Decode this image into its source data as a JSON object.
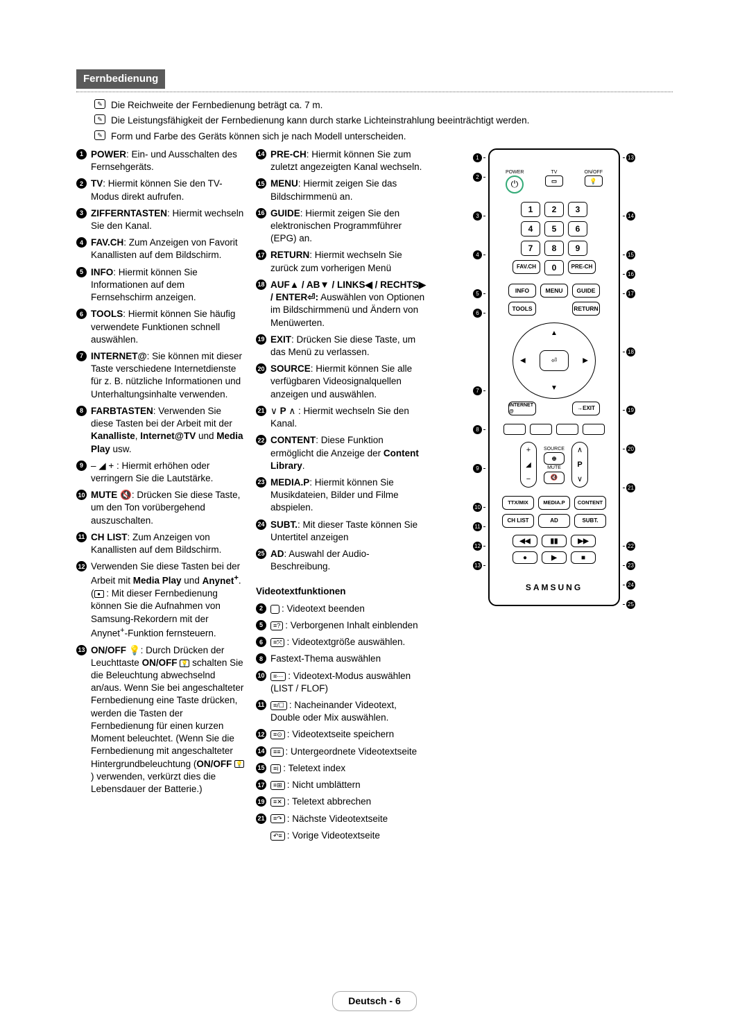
{
  "title": "Fernbedienung",
  "intro": [
    "Die Reichweite der Fernbedienung beträgt ca. 7 m.",
    "Die Leistungsfähigkeit der Fernbedienung kann durch starke Lichteinstrahlung beeinträchtigt werden.",
    "Form und Farbe des Geräts können sich je nach Modell unterscheiden."
  ],
  "left_items": [
    {
      "n": "1",
      "bold": "POWER",
      "text": ": Ein- und Ausschalten des Fernsehgeräts."
    },
    {
      "n": "2",
      "bold": "TV",
      "text": ": Hiermit können Sie den TV-Modus direkt aufrufen."
    },
    {
      "n": "3",
      "bold": "ZIFFERNTASTEN",
      "text": ": Hiermit wechseln Sie den Kanal."
    },
    {
      "n": "4",
      "bold": "FAV.CH",
      "text": ": Zum Anzeigen von Favorit Kanallisten auf dem Bildschirm."
    },
    {
      "n": "5",
      "bold": "INFO",
      "text": ": Hiermit können Sie Informationen auf dem Fernsehschirm anzeigen."
    },
    {
      "n": "6",
      "bold": "TOOLS",
      "text": ": Hiermit können Sie häufig verwendete Funktionen schnell auswählen."
    },
    {
      "n": "7",
      "bold": "INTERNET@",
      "text": ": Sie können mit dieser Taste verschiedene Internetdienste für z. B. nützliche Informationen und Unterhaltungsinhalte verwenden."
    },
    {
      "n": "8",
      "bold": "FARBTASTEN",
      "text_html": ": Verwenden Sie diese Tasten bei der Arbeit mit der <b>Kanalliste</b>, <b>Internet@TV</b> und <b>Media Play</b> usw."
    },
    {
      "n": "9",
      "bold": "",
      "text_html": "– ◢ + : Hiermit erhöhen oder verringern Sie die Lautstärke."
    },
    {
      "n": "10",
      "bold": "MUTE 🔇",
      "text": ": Drücken Sie diese Taste, um den Ton vorübergehend auszuschalten."
    },
    {
      "n": "11",
      "bold": "CH LIST",
      "text": ": Zum Anzeigen von Kanallisten auf dem Bildschirm."
    },
    {
      "n": "12",
      "bold": "",
      "text_html": "Verwenden Sie diese Tasten bei der Arbeit mit <b>Media Play</b> und <b>Anynet<sup>+</sup></b>. (<span class='mid-icon'>●</span> : Mit dieser Fernbedienung können Sie die Aufnahmen von Samsung-Rekordern mit der Anynet<sup>+</sup>-Funktion fernsteuern."
    },
    {
      "n": "13",
      "bold": "ON/OFF 💡",
      "text_html": ": Durch Drücken der Leuchttaste <b>ON/OFF</b> <span class='mid-icon'>💡</span> schalten Sie die Beleuchtung abwechselnd an/aus. Wenn Sie bei angeschalteter Fernbedienung eine Taste drücken, werden die Tasten der Fernbedienung für einen kurzen Moment beleuchtet. (Wenn Sie die Fernbedienung mit angeschalteter Hintergrundbeleuchtung (<b>ON/OFF</b> <span class='mid-icon'>💡</span>) verwenden, verkürzt dies die Lebensdauer der Batterie.)"
    }
  ],
  "mid_items": [
    {
      "n": "14",
      "bold": "PRE-CH",
      "text": ": Hiermit können Sie zum zuletzt angezeigten Kanal wechseln."
    },
    {
      "n": "15",
      "bold": "MENU",
      "text": ": Hiermit zeigen Sie das Bildschirmmenü an."
    },
    {
      "n": "16",
      "bold": "GUIDE",
      "text": ": Hiermit zeigen Sie den elektronischen Programmführer (EPG) an."
    },
    {
      "n": "17",
      "bold": "RETURN",
      "text": ": Hiermit wechseln Sie zurück zum vorherigen Menü"
    },
    {
      "n": "18",
      "bold": "AUF▲ / AB▼ / LINKS◀ / RECHTS▶ / ENTER⏎:",
      "text": " Auswählen von Optionen im Bildschirmmenü und Ändern von Menüwerten."
    },
    {
      "n": "19",
      "bold": "EXIT",
      "text": ": Drücken Sie diese Taste, um das Menü zu verlassen."
    },
    {
      "n": "20",
      "bold": "SOURCE",
      "text": ": Hiermit können Sie alle verfügbaren Videosignalquellen anzeigen und auswählen."
    },
    {
      "n": "21",
      "bold": "",
      "text_html": "∨ <b>P</b> ∧ : Hiermit wechseln Sie den Kanal."
    },
    {
      "n": "22",
      "bold": "CONTENT",
      "text_html": ": Diese Funktion ermöglicht die Anzeige der <b>Content Library</b>."
    },
    {
      "n": "23",
      "bold": "MEDIA.P",
      "text": ": Hiermit können Sie Musikdateien, Bilder und Filme abspielen."
    },
    {
      "n": "24",
      "bold": "SUBT.",
      "text": ": Mit dieser Taste können Sie Untertitel anzeigen"
    },
    {
      "n": "25",
      "bold": "AD",
      "text": ": Auswahl der Audio-Beschreibung."
    }
  ],
  "teletext_heading": "Videotextfunktionen",
  "teletext_items": [
    {
      "n": "2",
      "sym": "",
      "sym_type": "box",
      "text": ": Videotext beenden"
    },
    {
      "n": "5",
      "sym": "≡?",
      "text": ": Verborgenen Inhalt einblenden"
    },
    {
      "n": "6",
      "sym": "≡⤧",
      "text": ": Videotextgröße auswählen."
    },
    {
      "n": "8",
      "sym": "",
      "text": "Fastext-Thema auswählen"
    },
    {
      "n": "10",
      "sym": "≡⋯",
      "text": ": Videotext-Modus auswählen (LIST / FLOF)"
    },
    {
      "n": "11",
      "sym": "≡/☐",
      "text": ": Nacheinander Videotext, Double oder Mix auswählen."
    },
    {
      "n": "12",
      "sym": "≡⊙",
      "text": ": Videotextseite speichern"
    },
    {
      "n": "14",
      "sym": "≡≡",
      "text": ": Untergeordnete Videotextseite"
    },
    {
      "n": "15",
      "sym": "≡i",
      "text": ": Teletext index"
    },
    {
      "n": "17",
      "sym": "≡⊞",
      "text": ": Nicht umblättern"
    },
    {
      "n": "19",
      "sym": "≡✕",
      "text": ": Teletext abbrechen"
    },
    {
      "n": "21",
      "sym": "≡↷",
      "text": ": Nächste Videotextseite"
    },
    {
      "n": "",
      "sym": "↶≡",
      "text": ": Vorige Videotextseite"
    }
  ],
  "remote": {
    "top_labels": {
      "power": "POWER",
      "tv": "TV",
      "onoff": "ON/OFF"
    },
    "numpad": [
      [
        "1",
        "2",
        "3"
      ],
      [
        "4",
        "5",
        "6"
      ],
      [
        "7",
        "8",
        "9"
      ]
    ],
    "fav": "FAV.CH",
    "zero": "0",
    "prech": "PRE-CH",
    "info": "INFO",
    "menu": "MENU",
    "guide": "GUIDE",
    "tools": "TOOLS",
    "return": "RETURN",
    "internet": "INTERNET @",
    "exit": "→EXIT",
    "source": "SOURCE",
    "vol": "◢",
    "p": "P",
    "mute": "MUTE",
    "ttx": "TTX/MIX",
    "mediap": "MEDIA.P",
    "content": "CONTENT",
    "chlist": "CH LIST",
    "ad": "AD",
    "subt": "SUBT.",
    "brand": "SAMSUNG"
  },
  "footer": {
    "lang": "Deutsch - ",
    "page": "6"
  },
  "colors": {
    "title_bg": "#5a5a5a",
    "title_fg": "#ffffff",
    "text": "#000000",
    "power_ring": "#33aa77"
  }
}
